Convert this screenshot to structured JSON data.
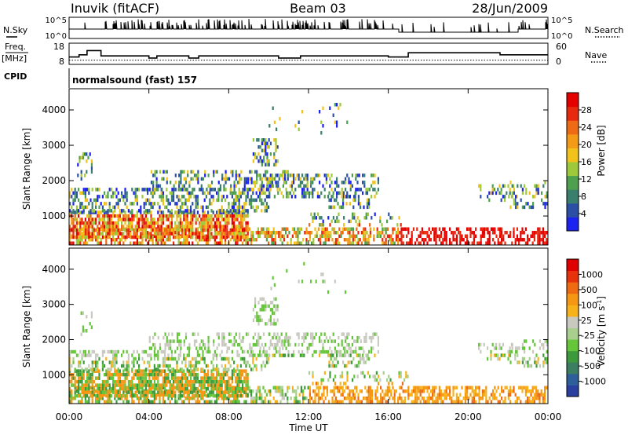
{
  "header": {
    "station": "Inuvik (fitACF)",
    "beam": "Beam 03",
    "date": "28/Jun/2009"
  },
  "panel_labels": {
    "nsky": "N.Sky",
    "nsearch": "N.Search",
    "freq": "Freq.",
    "freq_unit": "[MHz]",
    "nave": "Nave",
    "cpid": "CPID",
    "cpid_value": "normalsound (fast) 157"
  },
  "chart_data": [
    {
      "type": "line",
      "name": "noise",
      "yticks_left": [
        "10^5",
        "10^0"
      ],
      "yticks_right": [
        "10^5",
        "10^0"
      ],
      "xlim": [
        0,
        24
      ]
    },
    {
      "type": "line",
      "name": "frequency",
      "yticks_left": [
        "18",
        "8"
      ],
      "yticks_right": [
        "60",
        "0"
      ],
      "ylim_left": [
        8,
        18
      ],
      "ylim_right": [
        0,
        60
      ],
      "xlim": [
        0,
        24
      ],
      "freq_steps": [
        {
          "t": 0.0,
          "v": 11.5
        },
        {
          "t": 0.5,
          "v": 12.5
        },
        {
          "t": 0.9,
          "v": 14.5
        },
        {
          "t": 1.6,
          "v": 12.0
        },
        {
          "t": 4.0,
          "v": 11.0
        },
        {
          "t": 4.4,
          "v": 12.0
        },
        {
          "t": 6.0,
          "v": 11.0
        },
        {
          "t": 6.5,
          "v": 12.0
        },
        {
          "t": 10.5,
          "v": 11.0
        },
        {
          "t": 11.6,
          "v": 12.0
        },
        {
          "t": 16.0,
          "v": 11.5
        },
        {
          "t": 17.0,
          "v": 13.5
        },
        {
          "t": 21.6,
          "v": 12.5
        },
        {
          "t": 24.0,
          "v": 12.5
        }
      ],
      "nave_ref": 12
    },
    {
      "type": "heatmap",
      "name": "power",
      "ylabel": "Slant Range [km]",
      "yticks": [
        "1000",
        "2000",
        "3000",
        "4000"
      ],
      "ylim": [
        180,
        4600
      ],
      "xlim": [
        0,
        24
      ],
      "colorbar_label": "Power [dB]",
      "colorbar_ticks": [
        "4",
        "8",
        "12",
        "16",
        "20",
        "24",
        "28"
      ],
      "colorbar_colors": [
        "#1c22f0",
        "#2c4fa6",
        "#3a7e6e",
        "#4ea04e",
        "#9dc93a",
        "#f2c21b",
        "#f39a17",
        "#ee6a14",
        "#e8280f",
        "#e50000"
      ]
    },
    {
      "type": "heatmap",
      "name": "velocity",
      "ylabel": "Slant Range [km]",
      "yticks": [
        "1000",
        "2000",
        "3000",
        "4000"
      ],
      "ylim": [
        180,
        4600
      ],
      "xlim": [
        0,
        24
      ],
      "xlabel": "Time UT",
      "xticks": [
        "00:00",
        "04:00",
        "08:00",
        "12:00",
        "16:00",
        "20:00",
        "00:00"
      ],
      "colorbar_label": "Velocity [m s",
      "colorbar_label_exp": "-1",
      "colorbar_ticks": [
        "1000",
        "500",
        "100",
        "25",
        "-25",
        "-100",
        "-500",
        "-1000"
      ],
      "colorbar_colors": [
        "#2b3fa0",
        "#2e5f9a",
        "#3c7e62",
        "#3d9a3c",
        "#66c63a",
        "#a8cf8e",
        "#c9c9c0",
        "#f7b21a",
        "#f59712",
        "#ef6a10",
        "#e8320c",
        "#e00000"
      ]
    }
  ]
}
